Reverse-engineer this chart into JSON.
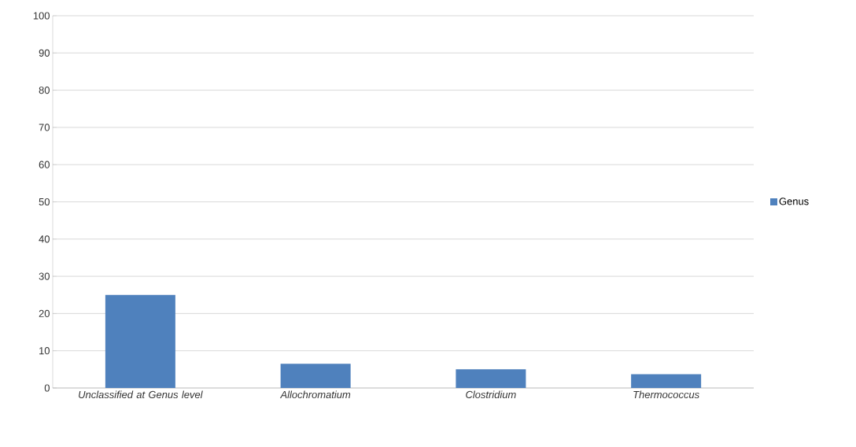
{
  "chart_data": {
    "type": "bar",
    "categories": [
      "Unclassified at Genus level",
      "Allochromatium",
      "Clostridium",
      "Thermococcus"
    ],
    "series": [
      {
        "name": "Genus",
        "color": "#4f81bd",
        "values": [
          25,
          6.5,
          5.0,
          3.7
        ]
      }
    ],
    "ylim": [
      0,
      100
    ],
    "yticks": [
      0,
      10,
      20,
      30,
      40,
      50,
      60,
      70,
      80,
      90,
      100
    ],
    "grid": "y",
    "legend": "right"
  }
}
